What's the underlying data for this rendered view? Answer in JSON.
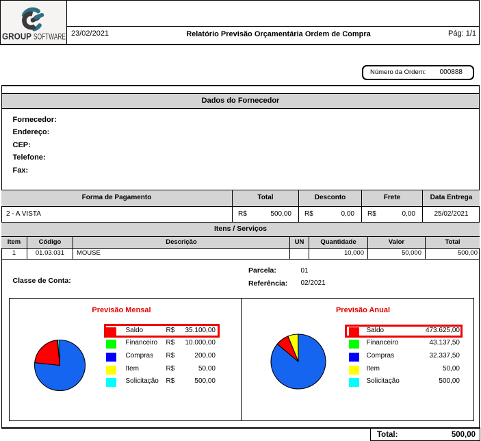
{
  "header": {
    "logo": {
      "brand_bold": "GROUP",
      "brand_light": "SOFTWARE",
      "mark_dark": "#3a393b",
      "mark_teal": "#2e7085",
      "background": "#f5f4f2"
    },
    "date": "23/02/2021",
    "title": "Relatório Previsão Orçamentária Ordem de Compra",
    "page_indicator": "Pág: 1/1"
  },
  "order_number": {
    "label": "Número da Ordem:",
    "value": "000888"
  },
  "supplier": {
    "section_title": "Dados do Fornecedor",
    "fields": [
      {
        "label": "Fornecedor:",
        "value": ""
      },
      {
        "label": "Endereço:",
        "value": ""
      },
      {
        "label": "CEP:",
        "value": ""
      },
      {
        "label": "Telefone:",
        "value": ""
      },
      {
        "label": "Fax:",
        "value": ""
      }
    ]
  },
  "payment_table": {
    "headers": [
      "Forma de Pagamento",
      "Total",
      "Desconto",
      "Frete",
      "Data Entrega"
    ],
    "row": {
      "forma_pagamento": "2 - A VISTA",
      "total_currency": "R$",
      "total": "500,00",
      "desconto_currency": "R$",
      "desconto": "0,00",
      "frete_currency": "R$",
      "frete": "0,00",
      "data_entrega": "25/02/2021"
    }
  },
  "items_section_title": "Itens / Serviços",
  "items_table": {
    "headers": [
      "Item",
      "Código",
      "Descrição",
      "UN",
      "Quantidade",
      "Valor",
      "Total"
    ],
    "row": {
      "item": "1",
      "codigo": "01.03.031",
      "descricao": "MOUSE",
      "un": "",
      "quantidade": "10,000",
      "valor": "50,000",
      "total": "500,00"
    }
  },
  "details": {
    "classe_label": "Classe de Conta:",
    "parcela_label": "Parcela:",
    "parcela_value": "01",
    "referencia_label": "Referência:",
    "referencia_value": "02/2021"
  },
  "chart_data": [
    {
      "type": "pie",
      "title": "Previsão Mensal",
      "title_color": "#e00000",
      "legend_position": "right",
      "highlight_color": "#f00000",
      "highlighted_row": "Saldo",
      "legend": [
        {
          "label": "Saldo",
          "currency": "R$",
          "value": "35.100,00",
          "color": "#ff0000"
        },
        {
          "label": "Financeiro",
          "currency": "R$",
          "value": "10.000,00",
          "color": "#00ff00"
        },
        {
          "label": "Compras",
          "currency": "R$",
          "value": "200,00",
          "color": "#0000ff"
        },
        {
          "label": "Item",
          "currency": "R$",
          "value": "50,00",
          "color": "#ffff00"
        },
        {
          "label": "Solicitação",
          "currency": "R$",
          "value": "500,00",
          "color": "#00ffff"
        }
      ],
      "slices": [
        {
          "color": "#1565f0",
          "start": -1.4,
          "end": 276
        },
        {
          "color": "#ff0000",
          "start": 276,
          "end": 354.2
        },
        {
          "color": "#ffff00",
          "start": 354.2,
          "end": 355.2
        },
        {
          "color": "#00ffff",
          "start": 355.2,
          "end": 358.6
        }
      ]
    },
    {
      "type": "pie",
      "title": "Previsão Anual",
      "title_color": "#e00000",
      "legend_position": "right",
      "highlight_color": "#f00000",
      "highlighted_row": "Saldo",
      "legend": [
        {
          "label": "Saldo",
          "currency": "",
          "value": "473.625,00",
          "color": "#ff0000"
        },
        {
          "label": "Financeiro",
          "currency": "",
          "value": "43.137,50",
          "color": "#00ff00"
        },
        {
          "label": "Compras",
          "currency": "",
          "value": "32.337,50",
          "color": "#0000ff"
        },
        {
          "label": "Item",
          "currency": "",
          "value": "50,00",
          "color": "#ffff00"
        },
        {
          "label": "Solicitação",
          "currency": "",
          "value": "500,00",
          "color": "#00ffff"
        }
      ],
      "slices": [
        {
          "color": "#1565f0",
          "start": -0.6,
          "end": 309.8
        },
        {
          "color": "#ff0000",
          "start": 309.8,
          "end": 337.9
        },
        {
          "color": "#ffff00",
          "start": 337.9,
          "end": 359.4
        }
      ]
    }
  ],
  "footer_total": {
    "label": "Total:",
    "value": "500,00"
  }
}
